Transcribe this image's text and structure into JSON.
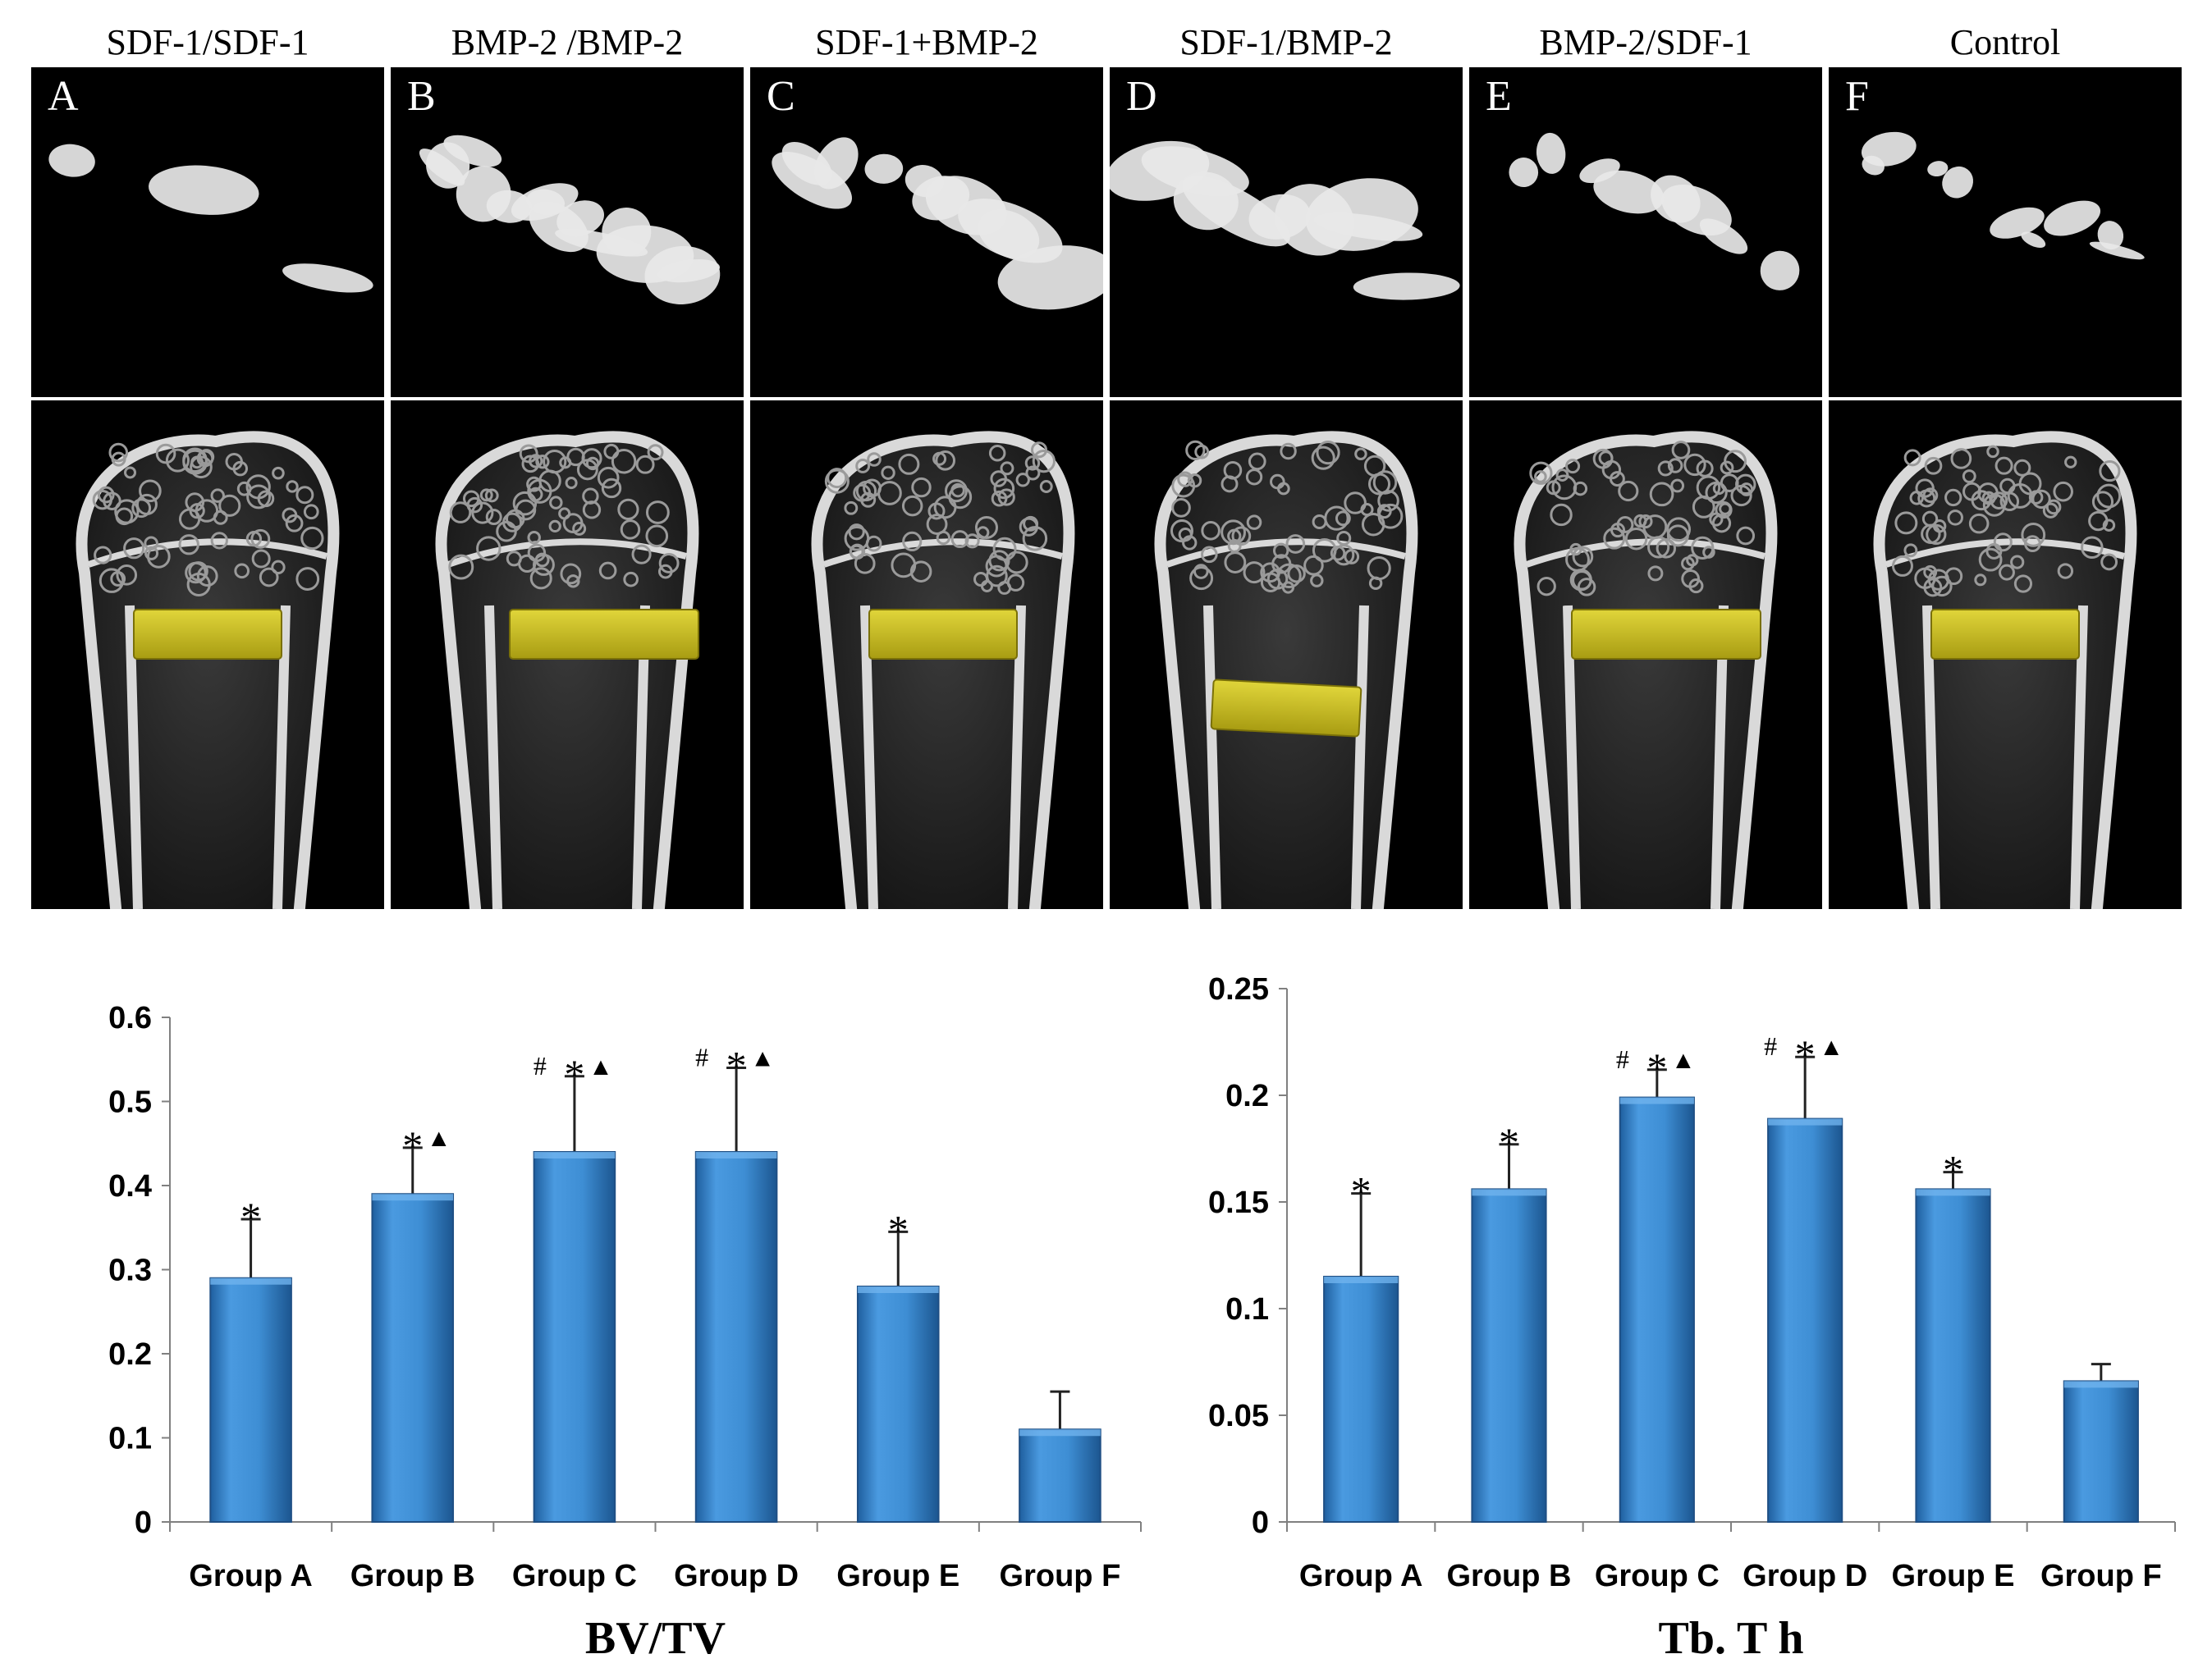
{
  "figure": {
    "colors": {
      "background": "#ffffff",
      "panel_bg": "#000000",
      "bar_fill": "#3e8ed4",
      "bar_edge": "#1f4f84",
      "bone": "#d9d9d9",
      "implant": "#cdc21e"
    },
    "panels": [
      {
        "group_label": "SDF-1/SDF-1",
        "letter": "A",
        "implant_level": "upper",
        "implant_tilt": "level"
      },
      {
        "group_label": "BMP-2 /BMP-2",
        "letter": "B",
        "implant_level": "upper",
        "implant_tilt": "level"
      },
      {
        "group_label": "SDF-1+BMP-2",
        "letter": "C",
        "implant_level": "upper",
        "implant_tilt": "level"
      },
      {
        "group_label": "SDF-1/BMP-2",
        "letter": "D",
        "implant_level": "lower",
        "implant_tilt": "slight"
      },
      {
        "group_label": "BMP-2/SDF-1",
        "letter": "E",
        "implant_level": "upper",
        "implant_tilt": "level"
      },
      {
        "group_label": "Control",
        "letter": "F",
        "implant_level": "upper",
        "implant_tilt": "level"
      }
    ]
  },
  "chart_data": [
    {
      "type": "bar",
      "title": "BV/TV",
      "xlabel": "BV/TV",
      "ylabel": "",
      "categories": [
        "Group A",
        "Group B",
        "Group C",
        "Group D",
        "Group E",
        "Group F"
      ],
      "values": [
        0.29,
        0.39,
        0.44,
        0.44,
        0.28,
        0.11
      ],
      "error_upper": [
        0.07,
        0.055,
        0.09,
        0.1,
        0.065,
        0.045
      ],
      "ylim": [
        0,
        0.6
      ],
      "yticks": [
        0,
        0.1,
        0.2,
        0.3,
        0.4,
        0.5,
        0.6
      ],
      "ytick_labels": [
        "0",
        "0.1",
        "0.2",
        "0.3",
        "0.4",
        "0.5",
        "0.6"
      ],
      "annotations": [
        {
          "hash": "",
          "star": "*",
          "triangle": ""
        },
        {
          "hash": "",
          "star": "*",
          "triangle": "▲"
        },
        {
          "hash": "#",
          "star": "*",
          "triangle": "▲"
        },
        {
          "hash": "#",
          "star": "*",
          "triangle": "▲"
        },
        {
          "hash": "",
          "star": "*",
          "triangle": ""
        },
        {
          "hash": "",
          "star": "",
          "triangle": ""
        }
      ]
    },
    {
      "type": "bar",
      "title": "Tb. T h",
      "xlabel": "Tb. T h",
      "ylabel": "",
      "categories": [
        "Group A",
        "Group B",
        "Group C",
        "Group D",
        "Group E",
        "Group F"
      ],
      "values": [
        0.115,
        0.156,
        0.199,
        0.189,
        0.156,
        0.066
      ],
      "error_upper": [
        0.039,
        0.021,
        0.013,
        0.029,
        0.008,
        0.008
      ],
      "ylim": [
        0,
        0.25
      ],
      "yticks": [
        0,
        0.05,
        0.1,
        0.15,
        0.2,
        0.25
      ],
      "ytick_labels": [
        "0",
        "0.05",
        "0.1",
        "0.15",
        "0.2",
        "0.25"
      ],
      "annotations": [
        {
          "hash": "",
          "star": "*",
          "triangle": ""
        },
        {
          "hash": "",
          "star": "*",
          "triangle": ""
        },
        {
          "hash": "#",
          "star": "*",
          "triangle": "▲"
        },
        {
          "hash": "#",
          "star": "*",
          "triangle": "▲"
        },
        {
          "hash": "",
          "star": "*",
          "triangle": ""
        },
        {
          "hash": "",
          "star": "",
          "triangle": ""
        }
      ]
    }
  ]
}
